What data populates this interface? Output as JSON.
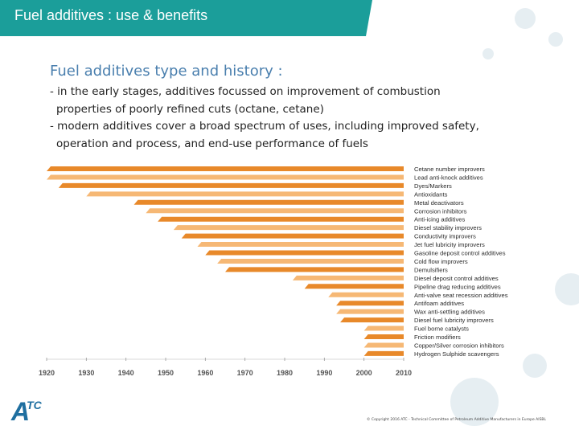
{
  "header": {
    "title": "Fuel additives : use & benefits"
  },
  "content": {
    "subtitle": "Fuel additives type and history :",
    "bullets": [
      {
        "line1": "- in the early stages, additives focussed on improvement of combustion",
        "line2": "properties of poorly refined cuts (octane, cetane)"
      },
      {
        "line1": "- modern additives cover a broad spectrum of uses, including improved safety,",
        "line2": "operation and process, and end-use performance of fuels"
      }
    ]
  },
  "chart_data": {
    "type": "bar",
    "orientation": "horizontal",
    "xlim": [
      1920,
      2010
    ],
    "x_ticks": [
      "1920",
      "1930",
      "1940",
      "1950",
      "1960",
      "1970",
      "1980",
      "1990",
      "2000",
      "2010"
    ],
    "bar_end": 2010,
    "colors": {
      "dark": "#e8892a",
      "light": "#f6b875"
    },
    "items": [
      {
        "label": "Cetane number improvers",
        "start": 1920,
        "shade": "dark"
      },
      {
        "label": "Lead anti-knock additives",
        "start": 1920,
        "shade": "light"
      },
      {
        "label": "Dyes/Markers",
        "start": 1923,
        "shade": "dark"
      },
      {
        "label": "Antioxidants",
        "start": 1930,
        "shade": "light"
      },
      {
        "label": "Metal deactivators",
        "start": 1942,
        "shade": "dark"
      },
      {
        "label": "Corrosion inhibitors",
        "start": 1945,
        "shade": "light"
      },
      {
        "label": "Anti-icing additives",
        "start": 1948,
        "shade": "dark"
      },
      {
        "label": "Diesel stability improvers",
        "start": 1952,
        "shade": "light"
      },
      {
        "label": "Conductivity improvers",
        "start": 1954,
        "shade": "dark"
      },
      {
        "label": "Jet fuel lubricity improvers",
        "start": 1958,
        "shade": "light"
      },
      {
        "label": "Gasoline deposit control additives",
        "start": 1960,
        "shade": "dark"
      },
      {
        "label": "Cold flow improvers",
        "start": 1963,
        "shade": "light"
      },
      {
        "label": "Demulsifiers",
        "start": 1965,
        "shade": "dark"
      },
      {
        "label": "Diesel deposit control additives",
        "start": 1982,
        "shade": "light"
      },
      {
        "label": "Pipeline drag reducing additives",
        "start": 1985,
        "shade": "dark"
      },
      {
        "label": "Anti-valve seat recession additives",
        "start": 1991,
        "shade": "light"
      },
      {
        "label": "Antifoam additives",
        "start": 1993,
        "shade": "dark"
      },
      {
        "label": "Wax anti-settling additives",
        "start": 1993,
        "shade": "light"
      },
      {
        "label": "Diesel fuel lubricity improvers",
        "start": 1994,
        "shade": "dark"
      },
      {
        "label": "Fuel borne catalysts",
        "start": 2000,
        "shade": "light"
      },
      {
        "label": "Friction modifiers",
        "start": 2000,
        "shade": "dark"
      },
      {
        "label": "Copper/Silver corrosion inhibitors",
        "start": 2000,
        "shade": "light"
      },
      {
        "label": "Hydrogen Sulphide scavengers",
        "start": 2000,
        "shade": "dark"
      }
    ]
  },
  "footer": {
    "logo_a": "A",
    "logo_tc": "TC",
    "copyright": "© Copyright 2016 ATC - Technical Committee of Petroleum Additive Manufacturers in Europe AISBL"
  }
}
